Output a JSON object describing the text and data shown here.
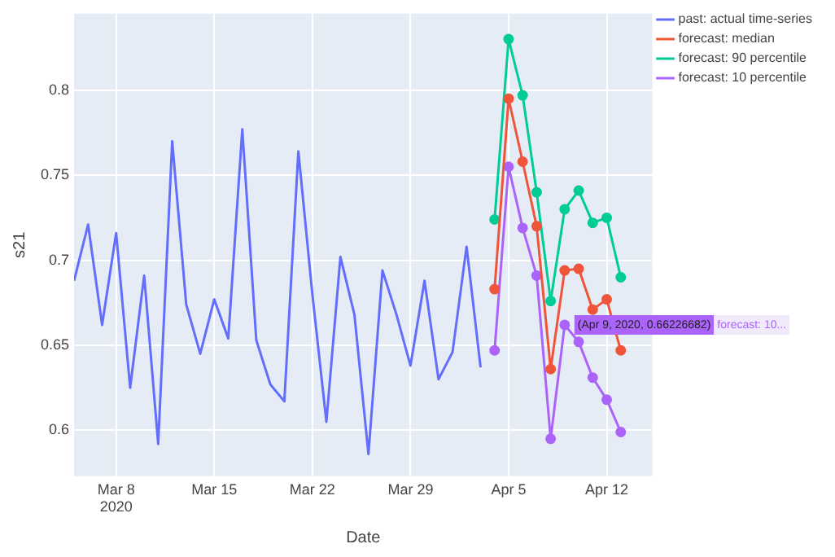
{
  "chart_data": {
    "type": "line",
    "xlabel": "Date",
    "ylabel": "s21",
    "xlim": [
      "2020-03-05",
      "2020-04-15T06:00"
    ],
    "xticks": [
      {
        "value": "2020-03-08",
        "label": "Mar 8\n2020"
      },
      {
        "value": "2020-03-15",
        "label": "Mar 15"
      },
      {
        "value": "2020-03-22",
        "label": "Mar 22"
      },
      {
        "value": "2020-03-29",
        "label": "Mar 29"
      },
      {
        "value": "2020-04-05",
        "label": "Apr 5"
      },
      {
        "value": "2020-04-12",
        "label": "Apr 12"
      }
    ],
    "ylim": [
      0.573,
      0.845
    ],
    "yticks": [
      0.6,
      0.65,
      0.7,
      0.75,
      0.8
    ],
    "grid": true,
    "legend": "top right",
    "series": [
      {
        "name": "past: actual time-series",
        "color": "#636efa",
        "marker": "none",
        "x": [
          "2020-03-05",
          "2020-03-06",
          "2020-03-07",
          "2020-03-08",
          "2020-03-09",
          "2020-03-10",
          "2020-03-11",
          "2020-03-12",
          "2020-03-13",
          "2020-03-14",
          "2020-03-15",
          "2020-03-16",
          "2020-03-17",
          "2020-03-18",
          "2020-03-19",
          "2020-03-20",
          "2020-03-21",
          "2020-03-22",
          "2020-03-23",
          "2020-03-24",
          "2020-03-25",
          "2020-03-26",
          "2020-03-27",
          "2020-03-28",
          "2020-03-29",
          "2020-03-30",
          "2020-03-31",
          "2020-04-01",
          "2020-04-02",
          "2020-04-03"
        ],
        "values": [
          0.688,
          0.721,
          0.662,
          0.716,
          0.625,
          0.691,
          0.592,
          0.77,
          0.674,
          0.645,
          0.677,
          0.654,
          0.777,
          0.653,
          0.627,
          0.617,
          0.764,
          0.68,
          0.605,
          0.702,
          0.668,
          0.586,
          0.694,
          0.668,
          0.638,
          0.688,
          0.63,
          0.646,
          0.708,
          0.637
        ]
      },
      {
        "name": "forecast: median",
        "color": "#ef553b",
        "marker": "circle",
        "x": [
          "2020-04-04",
          "2020-04-05",
          "2020-04-06",
          "2020-04-07",
          "2020-04-08",
          "2020-04-09",
          "2020-04-10",
          "2020-04-11",
          "2020-04-12",
          "2020-04-13"
        ],
        "values": [
          0.683,
          0.795,
          0.758,
          0.72,
          0.636,
          0.694,
          0.695,
          0.671,
          0.677,
          0.647
        ]
      },
      {
        "name": "forecast: 90 percentile",
        "color": "#00cc96",
        "marker": "circle",
        "x": [
          "2020-04-04",
          "2020-04-05",
          "2020-04-06",
          "2020-04-07",
          "2020-04-08",
          "2020-04-09",
          "2020-04-10",
          "2020-04-11",
          "2020-04-12",
          "2020-04-13"
        ],
        "values": [
          0.724,
          0.83,
          0.797,
          0.74,
          0.676,
          0.73,
          0.741,
          0.722,
          0.725,
          0.69
        ]
      },
      {
        "name": "forecast: 10 percentile",
        "color": "#ab63fa",
        "marker": "circle",
        "x": [
          "2020-04-04",
          "2020-04-05",
          "2020-04-06",
          "2020-04-07",
          "2020-04-08",
          "2020-04-09",
          "2020-04-10",
          "2020-04-11",
          "2020-04-12",
          "2020-04-13"
        ],
        "values": [
          0.647,
          0.755,
          0.719,
          0.691,
          0.595,
          0.662,
          0.652,
          0.631,
          0.618,
          0.599
        ]
      }
    ],
    "annotations": [
      {
        "text": "(Apr 9, 2020, 0.66226682)",
        "x": "2020-04-09",
        "y": 0.662
      },
      "forecast: 10..."
    ]
  }
}
